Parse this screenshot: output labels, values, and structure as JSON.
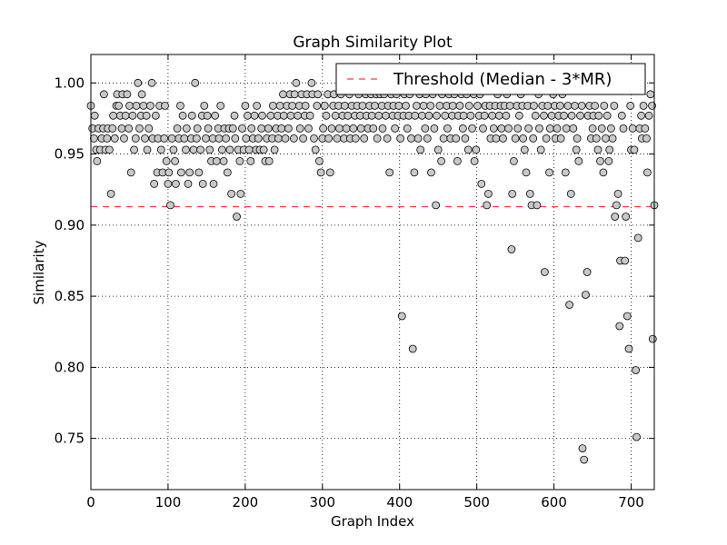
{
  "chart_data": {
    "type": "scatter",
    "title": "Graph Similarity Plot",
    "xlabel": "Graph Index",
    "ylabel": "Similarity",
    "xlim": [
      0,
      730
    ],
    "ylim": [
      0.714,
      1.02
    ],
    "xticks": [
      0,
      100,
      200,
      300,
      400,
      500,
      600,
      700
    ],
    "xtick_labels": [
      "0",
      "100",
      "200",
      "300",
      "400",
      "500",
      "600",
      "700"
    ],
    "yticks": [
      0.75,
      0.8,
      0.85,
      0.9,
      0.95,
      1.0
    ],
    "ytick_labels": [
      "0.75",
      "0.80",
      "0.85",
      "0.90",
      "0.95",
      "1.00"
    ],
    "grid": true,
    "legend": {
      "position": "top-right",
      "entries": [
        "Threshold (Median - 3*MR)"
      ]
    },
    "threshold": {
      "name": "Threshold (Median - 3*MR)",
      "value": 0.913,
      "color": "#ff4040"
    },
    "marker_color": "#c8c8c8",
    "points": [
      [
        0,
        0.984
      ],
      [
        2,
        0.968
      ],
      [
        4,
        0.961
      ],
      [
        5,
        0.977
      ],
      [
        7,
        0.953
      ],
      [
        8,
        0.945
      ],
      [
        10,
        0.968
      ],
      [
        12,
        0.953
      ],
      [
        14,
        0.961
      ],
      [
        16,
        0.968
      ],
      [
        17,
        0.992
      ],
      [
        19,
        0.953
      ],
      [
        21,
        0.961
      ],
      [
        22,
        0.968
      ],
      [
        24,
        0.953
      ],
      [
        26,
        0.922
      ],
      [
        28,
        0.968
      ],
      [
        29,
        0.977
      ],
      [
        31,
        0.961
      ],
      [
        33,
        0.984
      ],
      [
        34,
        0.992
      ],
      [
        36,
        0.984
      ],
      [
        38,
        0.977
      ],
      [
        40,
        0.968
      ],
      [
        41,
        0.992
      ],
      [
        43,
        0.961
      ],
      [
        45,
        0.977
      ],
      [
        47,
        0.992
      ],
      [
        49,
        0.968
      ],
      [
        50,
        0.984
      ],
      [
        52,
        0.937
      ],
      [
        54,
        0.977
      ],
      [
        56,
        0.953
      ],
      [
        58,
        0.961
      ],
      [
        59,
        0.984
      ],
      [
        61,
        1.0
      ],
      [
        63,
        0.968
      ],
      [
        65,
        0.977
      ],
      [
        66,
        0.992
      ],
      [
        68,
        0.984
      ],
      [
        70,
        0.961
      ],
      [
        72,
        0.977
      ],
      [
        73,
        0.953
      ],
      [
        75,
        0.968
      ],
      [
        77,
        0.984
      ],
      [
        79,
        1.0
      ],
      [
        80,
        0.961
      ],
      [
        82,
        0.929
      ],
      [
        84,
        0.977
      ],
      [
        86,
        0.937
      ],
      [
        87,
        0.961
      ],
      [
        89,
        0.984
      ],
      [
        91,
        0.953
      ],
      [
        93,
        0.937
      ],
      [
        95,
        0.961
      ],
      [
        96,
        0.984
      ],
      [
        98,
        0.945
      ],
      [
        100,
        0.929
      ],
      [
        101,
        0.937
      ],
      [
        103,
        0.914
      ],
      [
        105,
        0.961
      ],
      [
        107,
        0.953
      ],
      [
        109,
        0.945
      ],
      [
        110,
        0.929
      ],
      [
        112,
        0.968
      ],
      [
        114,
        0.961
      ],
      [
        116,
        0.984
      ],
      [
        117,
        0.937
      ],
      [
        119,
        0.977
      ],
      [
        121,
        0.961
      ],
      [
        123,
        0.953
      ],
      [
        124,
        0.968
      ],
      [
        126,
        0.929
      ],
      [
        128,
        0.937
      ],
      [
        130,
        0.961
      ],
      [
        131,
        0.977
      ],
      [
        133,
        0.953
      ],
      [
        135,
        1.0
      ],
      [
        137,
        0.961
      ],
      [
        138,
        0.968
      ],
      [
        140,
        0.937
      ],
      [
        142,
        0.953
      ],
      [
        144,
        0.977
      ],
      [
        145,
        0.929
      ],
      [
        147,
        0.984
      ],
      [
        149,
        0.961
      ],
      [
        151,
        0.977
      ],
      [
        152,
        0.968
      ],
      [
        154,
        0.953
      ],
      [
        156,
        0.945
      ],
      [
        158,
        0.961
      ],
      [
        159,
        0.929
      ],
      [
        161,
        0.977
      ],
      [
        163,
        0.945
      ],
      [
        165,
        0.968
      ],
      [
        166,
        0.961
      ],
      [
        168,
        0.984
      ],
      [
        170,
        0.953
      ],
      [
        172,
        0.945
      ],
      [
        173,
        0.968
      ],
      [
        175,
        0.961
      ],
      [
        177,
        0.937
      ],
      [
        179,
        0.968
      ],
      [
        180,
        0.953
      ],
      [
        182,
        0.922
      ],
      [
        184,
        0.968
      ],
      [
        186,
        0.977
      ],
      [
        187,
        0.961
      ],
      [
        189,
        0.906
      ],
      [
        191,
        0.953
      ],
      [
        193,
        0.945
      ],
      [
        194,
        0.922
      ],
      [
        196,
        0.968
      ],
      [
        198,
        0.953
      ],
      [
        200,
        0.984
      ],
      [
        201,
        0.961
      ],
      [
        203,
        0.977
      ],
      [
        205,
        0.953
      ],
      [
        207,
        0.945
      ],
      [
        208,
        0.968
      ],
      [
        210,
        0.961
      ],
      [
        212,
        0.977
      ],
      [
        214,
        0.953
      ],
      [
        215,
        0.984
      ],
      [
        217,
        0.961
      ],
      [
        219,
        0.953
      ],
      [
        221,
        0.968
      ],
      [
        222,
        0.977
      ],
      [
        224,
        0.953
      ],
      [
        226,
        0.945
      ],
      [
        228,
        0.961
      ],
      [
        230,
        0.968
      ],
      [
        231,
        0.945
      ],
      [
        233,
        0.977
      ],
      [
        235,
        0.961
      ],
      [
        236,
        0.984
      ],
      [
        238,
        0.953
      ],
      [
        240,
        0.968
      ],
      [
        242,
        0.977
      ],
      [
        243,
        0.961
      ],
      [
        245,
        0.984
      ],
      [
        247,
        0.968
      ],
      [
        249,
        0.992
      ],
      [
        250,
        0.977
      ],
      [
        252,
        0.961
      ],
      [
        254,
        0.984
      ],
      [
        256,
        0.968
      ],
      [
        258,
        0.992
      ],
      [
        259,
        0.977
      ],
      [
        261,
        0.984
      ],
      [
        263,
        0.961
      ],
      [
        264,
        0.992
      ],
      [
        266,
        1.0
      ],
      [
        268,
        0.977
      ],
      [
        270,
        0.984
      ],
      [
        271,
        0.968
      ],
      [
        273,
        0.992
      ],
      [
        275,
        0.961
      ],
      [
        277,
        0.977
      ],
      [
        278,
        0.984
      ],
      [
        280,
        0.992
      ],
      [
        282,
        0.968
      ],
      [
        284,
        0.977
      ],
      [
        286,
        1.0
      ],
      [
        287,
        0.992
      ],
      [
        289,
        0.961
      ],
      [
        291,
        0.953
      ],
      [
        293,
        0.984
      ],
      [
        294,
        0.992
      ],
      [
        296,
        0.945
      ],
      [
        298,
        0.937
      ],
      [
        300,
        0.961
      ],
      [
        301,
        0.968
      ],
      [
        303,
        0.984
      ],
      [
        305,
        0.977
      ],
      [
        307,
        0.992
      ],
      [
        308,
        0.961
      ],
      [
        310,
        0.937
      ],
      [
        312,
        0.968
      ],
      [
        314,
        0.984
      ],
      [
        315,
        0.992
      ],
      [
        317,
        0.977
      ],
      [
        319,
        0.961
      ],
      [
        321,
        0.984
      ],
      [
        322,
        0.968
      ],
      [
        324,
        0.992
      ],
      [
        326,
        0.977
      ],
      [
        328,
        0.961
      ],
      [
        329,
        0.984
      ],
      [
        331,
        0.968
      ],
      [
        333,
        0.977
      ],
      [
        335,
        0.992
      ],
      [
        336,
        0.961
      ],
      [
        338,
        0.984
      ],
      [
        340,
        0.968
      ],
      [
        342,
        0.977
      ],
      [
        343,
        0.961
      ],
      [
        345,
        0.984
      ],
      [
        347,
        0.992
      ],
      [
        349,
        0.977
      ],
      [
        350,
        0.968
      ],
      [
        352,
        0.984
      ],
      [
        354,
        0.961
      ],
      [
        356,
        0.992
      ],
      [
        357,
        0.977
      ],
      [
        359,
        0.968
      ],
      [
        361,
        0.984
      ],
      [
        363,
        0.992
      ],
      [
        364,
        0.977
      ],
      [
        366,
        0.968
      ],
      [
        368,
        0.984
      ],
      [
        370,
        0.992
      ],
      [
        371,
        0.961
      ],
      [
        373,
        0.977
      ],
      [
        375,
        0.992
      ],
      [
        377,
        0.984
      ],
      [
        378,
        0.968
      ],
      [
        380,
        0.992
      ],
      [
        382,
        0.977
      ],
      [
        384,
        0.961
      ],
      [
        385,
        0.984
      ],
      [
        387,
        0.937
      ],
      [
        389,
        0.992
      ],
      [
        391,
        0.977
      ],
      [
        392,
        0.984
      ],
      [
        394,
        0.968
      ],
      [
        396,
        0.992
      ],
      [
        398,
        0.977
      ],
      [
        399,
        0.984
      ],
      [
        401,
        0.961
      ],
      [
        403,
        0.836
      ],
      [
        405,
        0.977
      ],
      [
        406,
        0.992
      ],
      [
        408,
        0.984
      ],
      [
        410,
        0.968
      ],
      [
        412,
        0.977
      ],
      [
        413,
        0.992
      ],
      [
        415,
        0.961
      ],
      [
        417,
        0.813
      ],
      [
        419,
        0.937
      ],
      [
        420,
        0.977
      ],
      [
        422,
        0.984
      ],
      [
        424,
        0.961
      ],
      [
        426,
        0.992
      ],
      [
        427,
        0.953
      ],
      [
        429,
        0.977
      ],
      [
        431,
        0.984
      ],
      [
        433,
        0.968
      ],
      [
        434,
        0.992
      ],
      [
        436,
        0.961
      ],
      [
        438,
        0.977
      ],
      [
        440,
        0.984
      ],
      [
        441,
        0.937
      ],
      [
        443,
        0.992
      ],
      [
        445,
        0.968
      ],
      [
        447,
        0.914
      ],
      [
        448,
        0.977
      ],
      [
        450,
        0.953
      ],
      [
        452,
        0.984
      ],
      [
        454,
        0.945
      ],
      [
        455,
        0.992
      ],
      [
        457,
        0.961
      ],
      [
        459,
        0.977
      ],
      [
        461,
        0.984
      ],
      [
        462,
        0.968
      ],
      [
        464,
        0.992
      ],
      [
        466,
        0.961
      ],
      [
        468,
        0.977
      ],
      [
        469,
        0.984
      ],
      [
        471,
        0.992
      ],
      [
        473,
        0.961
      ],
      [
        475,
        0.945
      ],
      [
        476,
        0.977
      ],
      [
        478,
        0.984
      ],
      [
        480,
        0.992
      ],
      [
        482,
        0.968
      ],
      [
        483,
        0.977
      ],
      [
        485,
        0.961
      ],
      [
        487,
        0.992
      ],
      [
        489,
        0.953
      ],
      [
        490,
        0.984
      ],
      [
        492,
        0.977
      ],
      [
        494,
        0.968
      ],
      [
        496,
        0.992
      ],
      [
        497,
        0.945
      ],
      [
        499,
        0.953
      ],
      [
        501,
        0.984
      ],
      [
        503,
        0.977
      ],
      [
        504,
        0.992
      ],
      [
        506,
        0.929
      ],
      [
        508,
        0.968
      ],
      [
        510,
        0.977
      ],
      [
        511,
        0.984
      ],
      [
        513,
        0.914
      ],
      [
        515,
        0.922
      ],
      [
        517,
        0.984
      ],
      [
        518,
        0.961
      ],
      [
        520,
        0.977
      ],
      [
        522,
        0.968
      ],
      [
        524,
        0.984
      ],
      [
        525,
        0.961
      ],
      [
        527,
        0.992
      ],
      [
        529,
        0.977
      ],
      [
        531,
        0.984
      ],
      [
        532,
        0.968
      ],
      [
        534,
        0.961
      ],
      [
        536,
        0.984
      ],
      [
        538,
        0.977
      ],
      [
        539,
        0.992
      ],
      [
        541,
        0.968
      ],
      [
        543,
        0.984
      ],
      [
        545,
        0.883
      ],
      [
        546,
        0.922
      ],
      [
        548,
        0.945
      ],
      [
        550,
        0.961
      ],
      [
        552,
        0.984
      ],
      [
        553,
        0.968
      ],
      [
        555,
        0.977
      ],
      [
        557,
        0.992
      ],
      [
        559,
        0.984
      ],
      [
        560,
        0.961
      ],
      [
        562,
        0.953
      ],
      [
        564,
        0.937
      ],
      [
        566,
        0.984
      ],
      [
        567,
        0.968
      ],
      [
        569,
        0.922
      ],
      [
        571,
        0.914
      ],
      [
        573,
        0.961
      ],
      [
        574,
        0.984
      ],
      [
        576,
        0.977
      ],
      [
        578,
        0.914
      ],
      [
        580,
        0.992
      ],
      [
        581,
        0.968
      ],
      [
        583,
        0.953
      ],
      [
        585,
        0.984
      ],
      [
        587,
        0.977
      ],
      [
        588,
        0.867
      ],
      [
        590,
        0.961
      ],
      [
        592,
        0.984
      ],
      [
        594,
        0.937
      ],
      [
        595,
        0.968
      ],
      [
        597,
        0.977
      ],
      [
        599,
        0.992
      ],
      [
        601,
        0.984
      ],
      [
        602,
        0.961
      ],
      [
        604,
        0.968
      ],
      [
        606,
        0.977
      ],
      [
        608,
        0.984
      ],
      [
        609,
        0.961
      ],
      [
        611,
        0.992
      ],
      [
        613,
        0.977
      ],
      [
        615,
        0.937
      ],
      [
        616,
        0.968
      ],
      [
        618,
        0.984
      ],
      [
        620,
        0.844
      ],
      [
        622,
        0.922
      ],
      [
        623,
        0.977
      ],
      [
        625,
        0.968
      ],
      [
        627,
        0.984
      ],
      [
        629,
        0.953
      ],
      [
        630,
        0.961
      ],
      [
        632,
        0.945
      ],
      [
        634,
        0.977
      ],
      [
        636,
        0.984
      ],
      [
        637,
        0.743
      ],
      [
        639,
        0.735
      ],
      [
        641,
        0.851
      ],
      [
        643,
        0.867
      ],
      [
        644,
        0.977
      ],
      [
        646,
        0.984
      ],
      [
        648,
        0.961
      ],
      [
        650,
        0.968
      ],
      [
        651,
        0.977
      ],
      [
        653,
        0.984
      ],
      [
        655,
        0.961
      ],
      [
        657,
        0.953
      ],
      [
        658,
        0.977
      ],
      [
        660,
        0.945
      ],
      [
        662,
        0.968
      ],
      [
        664,
        0.937
      ],
      [
        665,
        0.984
      ],
      [
        667,
        0.961
      ],
      [
        669,
        0.977
      ],
      [
        671,
        0.945
      ],
      [
        672,
        0.953
      ],
      [
        674,
        0.968
      ],
      [
        676,
        0.961
      ],
      [
        678,
        0.984
      ],
      [
        679,
        0.906
      ],
      [
        681,
        0.914
      ],
      [
        683,
        0.922
      ],
      [
        685,
        0.829
      ],
      [
        686,
        0.875
      ],
      [
        688,
        0.977
      ],
      [
        690,
        0.968
      ],
      [
        692,
        0.875
      ],
      [
        693,
        0.906
      ],
      [
        695,
        0.836
      ],
      [
        697,
        0.813
      ],
      [
        699,
        0.984
      ],
      [
        700,
        0.953
      ],
      [
        702,
        0.968
      ],
      [
        704,
        0.953
      ],
      [
        706,
        0.798
      ],
      [
        707,
        0.751
      ],
      [
        709,
        0.891
      ],
      [
        711,
        0.968
      ],
      [
        713,
        0.977
      ],
      [
        714,
        0.961
      ],
      [
        716,
        0.984
      ],
      [
        718,
        0.968
      ],
      [
        720,
        0.961
      ],
      [
        721,
        0.937
      ],
      [
        723,
        0.977
      ],
      [
        725,
        0.992
      ],
      [
        727,
        0.984
      ],
      [
        728,
        0.82
      ],
      [
        730,
        0.914
      ]
    ]
  }
}
